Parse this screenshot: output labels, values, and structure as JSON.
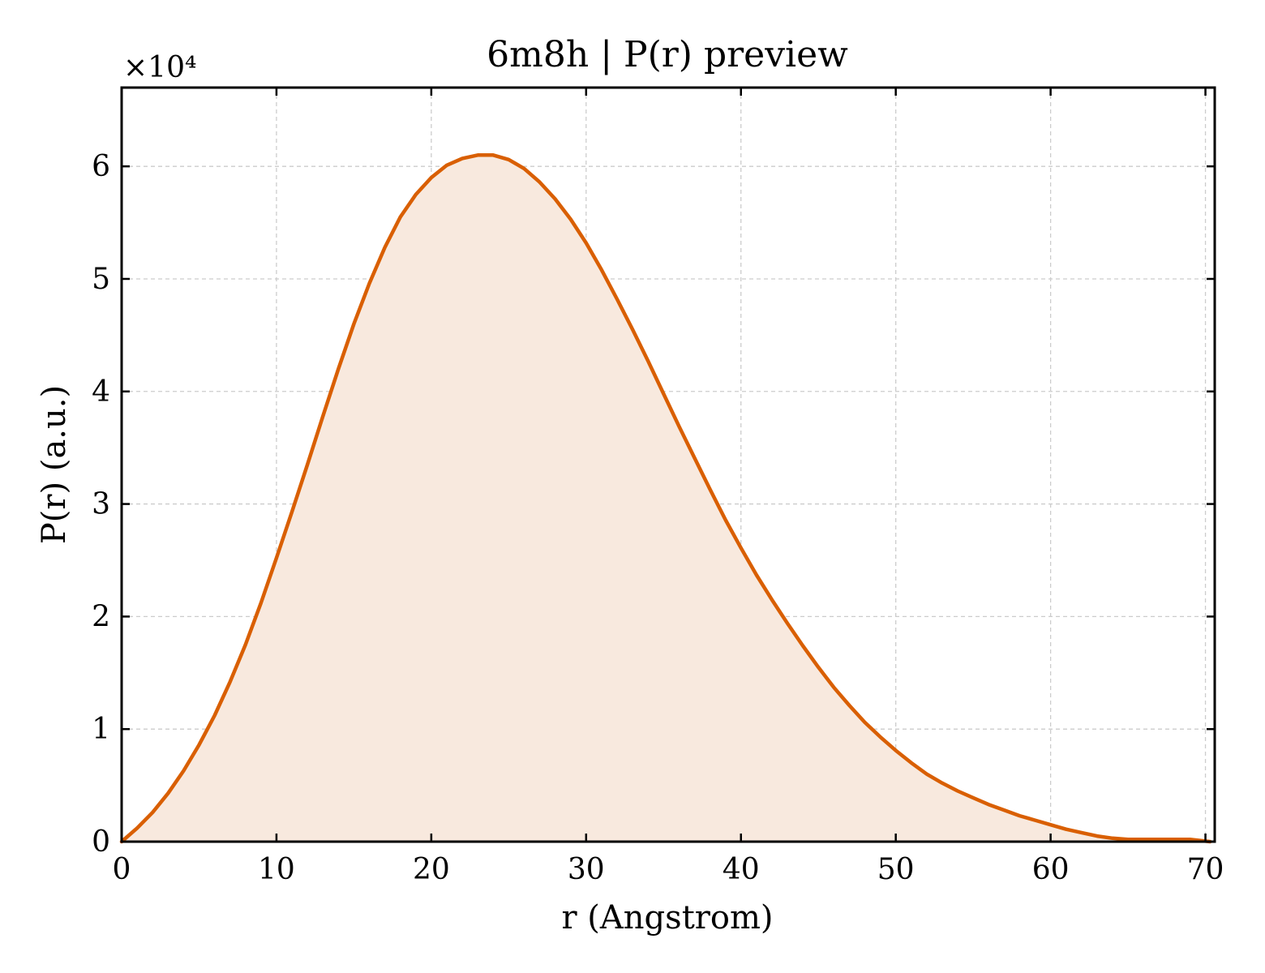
{
  "chart_data": {
    "type": "area",
    "title": "6m8h | P(r) preview",
    "xlabel": "r (Angstrom)",
    "ylabel": "P(r) (a.u.)",
    "y_multiplier_label": "×10⁴",
    "xlim": [
      0,
      70.6
    ],
    "ylim": [
      0,
      6.7
    ],
    "y_scale_factor": 10000,
    "x_ticks": [
      0,
      10,
      20,
      30,
      40,
      50,
      60,
      70
    ],
    "y_ticks": [
      0,
      1,
      2,
      3,
      4,
      5,
      6
    ],
    "x_tick_labels": [
      "0",
      "10",
      "20",
      "30",
      "40",
      "50",
      "60",
      "70"
    ],
    "y_tick_labels": [
      "0",
      "1",
      "2",
      "3",
      "4",
      "5",
      "6"
    ],
    "grid": true,
    "line_color": "#d95f02",
    "fill_color": "#f8e9de",
    "series": [
      {
        "x": [
          0,
          1,
          2,
          3,
          4,
          5,
          6,
          7,
          8,
          9,
          10,
          11,
          12,
          13,
          14,
          15,
          16,
          17,
          18,
          19,
          20,
          21,
          22,
          23,
          24,
          25,
          26,
          27,
          28,
          29,
          30,
          31,
          32,
          33,
          34,
          35,
          36,
          37,
          38,
          39,
          40,
          41,
          42,
          43,
          44,
          45,
          46,
          47,
          48,
          49,
          50,
          51,
          52,
          53,
          54,
          55,
          56,
          57,
          58,
          59,
          60,
          61,
          62,
          63,
          64,
          65,
          66,
          67,
          68,
          69,
          70.3
        ],
        "y": [
          0.0,
          0.12,
          0.26,
          0.43,
          0.63,
          0.86,
          1.12,
          1.42,
          1.75,
          2.12,
          2.52,
          2.93,
          3.35,
          3.78,
          4.2,
          4.6,
          4.96,
          5.28,
          5.55,
          5.75,
          5.9,
          6.01,
          6.07,
          6.1,
          6.1,
          6.06,
          5.98,
          5.86,
          5.71,
          5.53,
          5.32,
          5.08,
          4.82,
          4.55,
          4.27,
          3.98,
          3.69,
          3.41,
          3.13,
          2.86,
          2.61,
          2.37,
          2.15,
          1.94,
          1.74,
          1.55,
          1.37,
          1.21,
          1.06,
          0.93,
          0.81,
          0.7,
          0.6,
          0.52,
          0.45,
          0.39,
          0.33,
          0.28,
          0.23,
          0.19,
          0.15,
          0.11,
          0.08,
          0.05,
          0.03,
          0.02,
          0.02,
          0.02,
          0.02,
          0.02,
          0.0
        ]
      }
    ]
  }
}
